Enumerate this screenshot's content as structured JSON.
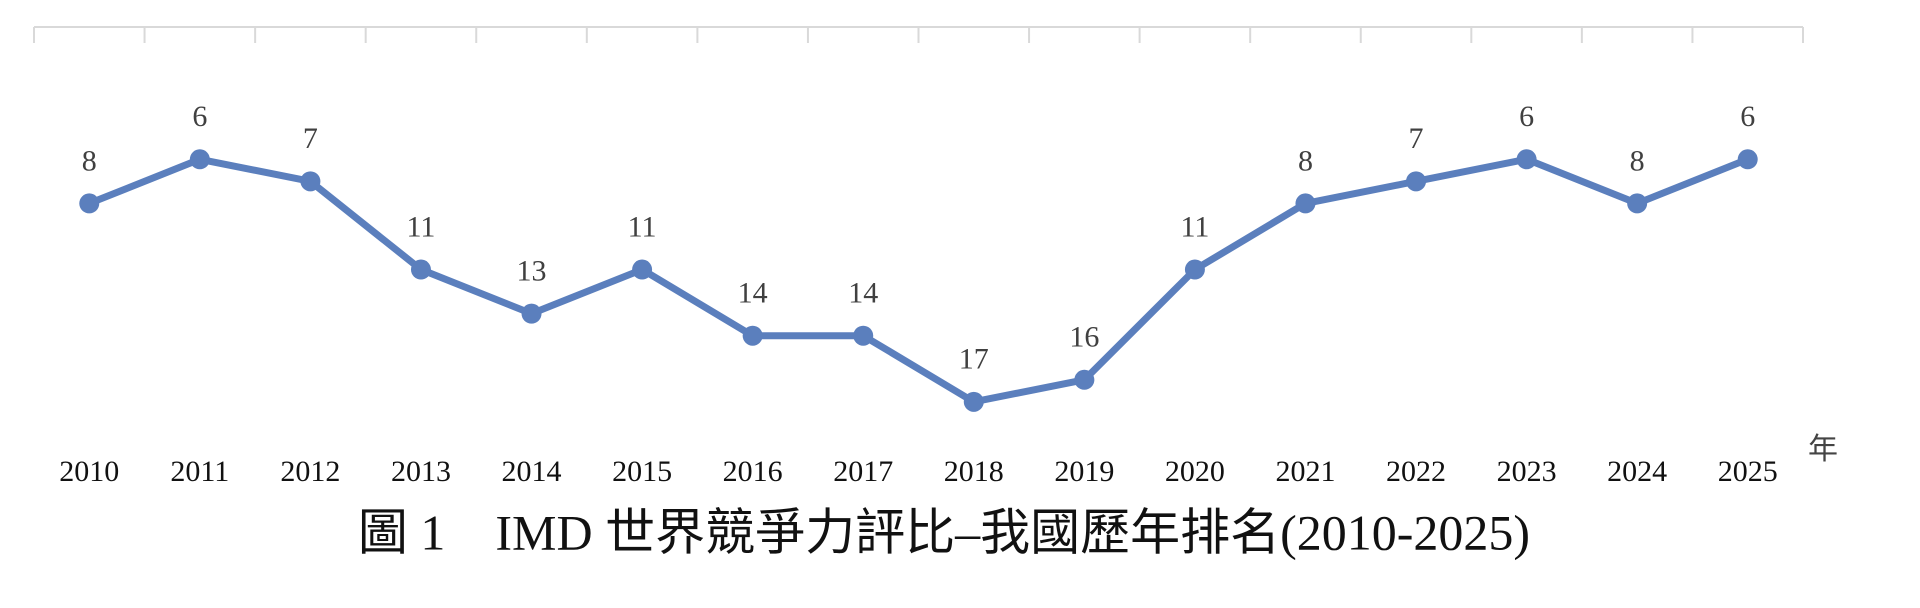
{
  "chart_data": {
    "type": "line",
    "title": "圖 1　IMD 世界競爭力評比–我國歷年排名(2010-2025)",
    "x_unit_label": "年",
    "categories": [
      "2010",
      "2011",
      "2012",
      "2013",
      "2014",
      "2015",
      "2016",
      "2017",
      "2018",
      "2019",
      "2020",
      "2021",
      "2022",
      "2023",
      "2024",
      "2025"
    ],
    "series": [
      {
        "name": "排名",
        "color": "#5b7fbd",
        "values": [
          8,
          6,
          7,
          11,
          13,
          11,
          14,
          14,
          17,
          16,
          11,
          8,
          7,
          6,
          8,
          6
        ]
      }
    ],
    "ylim": [
      0,
      20
    ],
    "y_inverted": true,
    "legend": false,
    "grid": false
  }
}
